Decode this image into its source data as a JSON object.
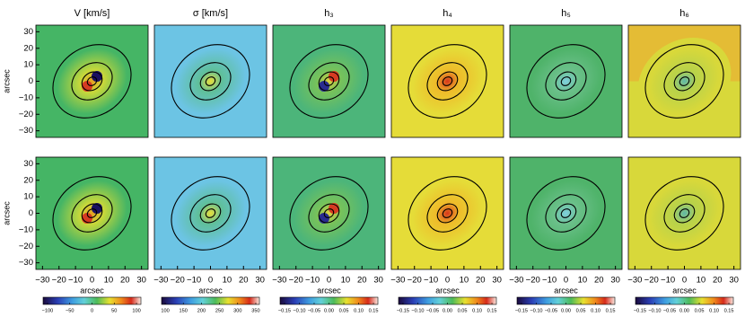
{
  "chart_data": [
    {
      "type": "map",
      "title": "V [km/s]",
      "ylabel": "arcsec",
      "xlim": [
        -34,
        34
      ],
      "ylim": [
        -34,
        34
      ],
      "yticks": [
        {
          "value": -30,
          "label": "−30"
        },
        {
          "value": -20,
          "label": "−20"
        },
        {
          "value": -10,
          "label": "−10"
        },
        0,
        10,
        20,
        30
      ]
    },
    {
      "type": "map",
      "title": "σ [km/s]",
      "xlim": [
        -34,
        34
      ],
      "ylim": [
        -34,
        34
      ]
    },
    {
      "type": "map",
      "title": "h₃",
      "xlim": [
        -34,
        34
      ],
      "ylim": [
        -34,
        34
      ]
    },
    {
      "type": "map",
      "title": "h₄",
      "xlim": [
        -34,
        34
      ],
      "ylim": [
        -34,
        34
      ]
    },
    {
      "type": "map",
      "title": "h₅",
      "xlim": [
        -34,
        34
      ],
      "ylim": [
        -34,
        34
      ]
    },
    {
      "type": "map",
      "title": "h₆",
      "xlim": [
        -34,
        34
      ],
      "ylim": [
        -34,
        34
      ]
    },
    {
      "type": "map",
      "ylabel": "arcsec",
      "xlabel": "arcsec",
      "xlim": [
        -34,
        34
      ],
      "ylim": [
        -34,
        34
      ],
      "yticks": [
        {
          "value": -30,
          "label": "−30"
        },
        {
          "value": -20,
          "label": "−20"
        },
        {
          "value": -10,
          "label": "−10"
        },
        0,
        10,
        20,
        30
      ],
      "xticks": [
        {
          "value": -30,
          "label": "−30"
        },
        {
          "value": -20,
          "label": "−20"
        },
        {
          "value": -10,
          "label": "−10"
        },
        0,
        10,
        20,
        30
      ],
      "colorbar": {
        "lim": [
          -110,
          110
        ],
        "ticks": [
          {
            "value": -100,
            "label": "−100"
          },
          {
            "value": -50,
            "label": "−50"
          },
          0,
          50,
          100
        ]
      }
    },
    {
      "type": "map",
      "xlabel": "arcsec",
      "xlim": [
        -34,
        34
      ],
      "ylim": [
        -34,
        34
      ],
      "xticks": [
        {
          "value": -30,
          "label": "−30"
        },
        {
          "value": -20,
          "label": "−20"
        },
        {
          "value": -10,
          "label": "−10"
        },
        0,
        10,
        20,
        30
      ],
      "colorbar": {
        "lim": [
          90,
          360
        ],
        "ticks": [
          100,
          150,
          200,
          250,
          300,
          350
        ]
      }
    },
    {
      "type": "map",
      "xlabel": "arcsec",
      "xlim": [
        -34,
        34
      ],
      "ylim": [
        -34,
        34
      ],
      "xticks": [
        {
          "value": -30,
          "label": "−30"
        },
        {
          "value": -20,
          "label": "−20"
        },
        {
          "value": -10,
          "label": "−10"
        },
        0,
        10,
        20,
        30
      ],
      "colorbar": {
        "lim": [
          -0.165,
          0.165
        ],
        "ticks": [
          {
            "value": -0.15,
            "label": "−0.15"
          },
          {
            "value": -0.1,
            "label": "−0.10"
          },
          {
            "value": -0.05,
            "label": "−0.05"
          },
          {
            "value": 0,
            "label": "0.00"
          },
          0.05,
          {
            "value": 0.1,
            "label": "0.10"
          },
          0.15
        ]
      }
    },
    {
      "type": "map",
      "xlabel": "arcsec",
      "xlim": [
        -34,
        34
      ],
      "ylim": [
        -34,
        34
      ],
      "xticks": [
        {
          "value": -30,
          "label": "−30"
        },
        {
          "value": -20,
          "label": "−20"
        },
        {
          "value": -10,
          "label": "−10"
        },
        0,
        10,
        20,
        30
      ],
      "colorbar": {
        "lim": [
          -0.165,
          0.165
        ],
        "ticks": [
          {
            "value": -0.15,
            "label": "−0.15"
          },
          {
            "value": -0.1,
            "label": "−0.10"
          },
          {
            "value": -0.05,
            "label": "−0.05"
          },
          {
            "value": 0,
            "label": "0.00"
          },
          0.05,
          {
            "value": 0.1,
            "label": "0.10"
          },
          0.15
        ]
      }
    },
    {
      "type": "map",
      "xlabel": "arcsec",
      "xlim": [
        -34,
        34
      ],
      "ylim": [
        -34,
        34
      ],
      "xticks": [
        {
          "value": -30,
          "label": "−30"
        },
        {
          "value": -20,
          "label": "−20"
        },
        {
          "value": -10,
          "label": "−10"
        },
        0,
        10,
        20,
        30
      ],
      "colorbar": {
        "lim": [
          -0.165,
          0.165
        ],
        "ticks": [
          {
            "value": -0.15,
            "label": "−0.15"
          },
          {
            "value": -0.1,
            "label": "−0.10"
          },
          {
            "value": -0.05,
            "label": "−0.05"
          },
          {
            "value": 0,
            "label": "0.00"
          },
          0.05,
          {
            "value": 0.1,
            "label": "0.10"
          },
          0.15
        ]
      }
    },
    {
      "type": "map",
      "xlabel": "arcsec",
      "xlim": [
        -34,
        34
      ],
      "ylim": [
        -34,
        34
      ],
      "xticks": [
        {
          "value": -30,
          "label": "−30"
        },
        {
          "value": -20,
          "label": "−20"
        },
        {
          "value": -10,
          "label": "−10"
        },
        0,
        10,
        20,
        30
      ],
      "colorbar": {
        "lim": [
          -0.165,
          0.165
        ],
        "ticks": [
          {
            "value": -0.15,
            "label": "−0.15"
          },
          {
            "value": -0.1,
            "label": "−0.10"
          },
          {
            "value": -0.05,
            "label": "−0.05"
          },
          {
            "value": 0,
            "label": "0.00"
          },
          0.05,
          {
            "value": 0.1,
            "label": "0.10"
          },
          0.15
        ]
      }
    }
  ]
}
